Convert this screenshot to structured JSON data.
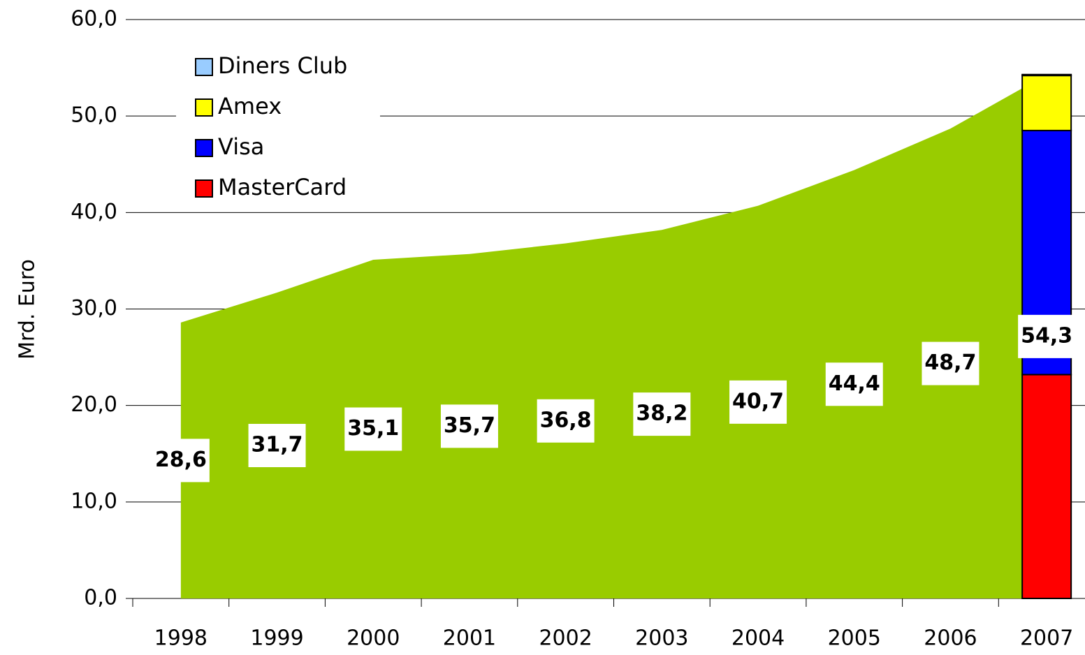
{
  "chart_data": {
    "type": "area_bar",
    "y_label": "Mrd. Euro",
    "categories": [
      "1998",
      "1999",
      "2000",
      "2001",
      "2002",
      "2003",
      "2004",
      "2005",
      "2006",
      "2007"
    ],
    "area": {
      "color": "#99cc00",
      "values": [
        28.6,
        31.7,
        35.1,
        35.7,
        36.8,
        38.2,
        40.7,
        44.4,
        48.7,
        54.3
      ],
      "value_labels": [
        "28,6",
        "31,7",
        "35,1",
        "35,7",
        "36,8",
        "38,2",
        "40,7",
        "44,4",
        "48,7",
        "54,3"
      ]
    },
    "series": [
      {
        "name": "MasterCard",
        "color": "#ff0000",
        "values": [
          null,
          null,
          null,
          null,
          null,
          null,
          null,
          null,
          null,
          23.2
        ]
      },
      {
        "name": "Visa",
        "color": "#0000ff",
        "values": [
          null,
          null,
          null,
          null,
          null,
          null,
          null,
          null,
          null,
          25.3
        ]
      },
      {
        "name": "Amex",
        "color": "#ffff00",
        "values": [
          null,
          null,
          null,
          null,
          null,
          null,
          null,
          null,
          null,
          5.7
        ]
      },
      {
        "name": "Diners Club",
        "color": "#99ccff",
        "values": [
          null,
          null,
          null,
          null,
          null,
          null,
          null,
          null,
          null,
          0.1
        ]
      }
    ],
    "ylim": [
      0,
      60
    ],
    "yticks": [
      {
        "value": 0,
        "label": "0,0"
      },
      {
        "value": 10,
        "label": "10,0"
      },
      {
        "value": 20,
        "label": "20,0"
      },
      {
        "value": 30,
        "label": "30,0"
      },
      {
        "value": 40,
        "label": "40,0"
      },
      {
        "value": 50,
        "label": "50,0"
      },
      {
        "value": 60,
        "label": "60,0"
      }
    ],
    "grid": true,
    "legend": "upper-left"
  }
}
